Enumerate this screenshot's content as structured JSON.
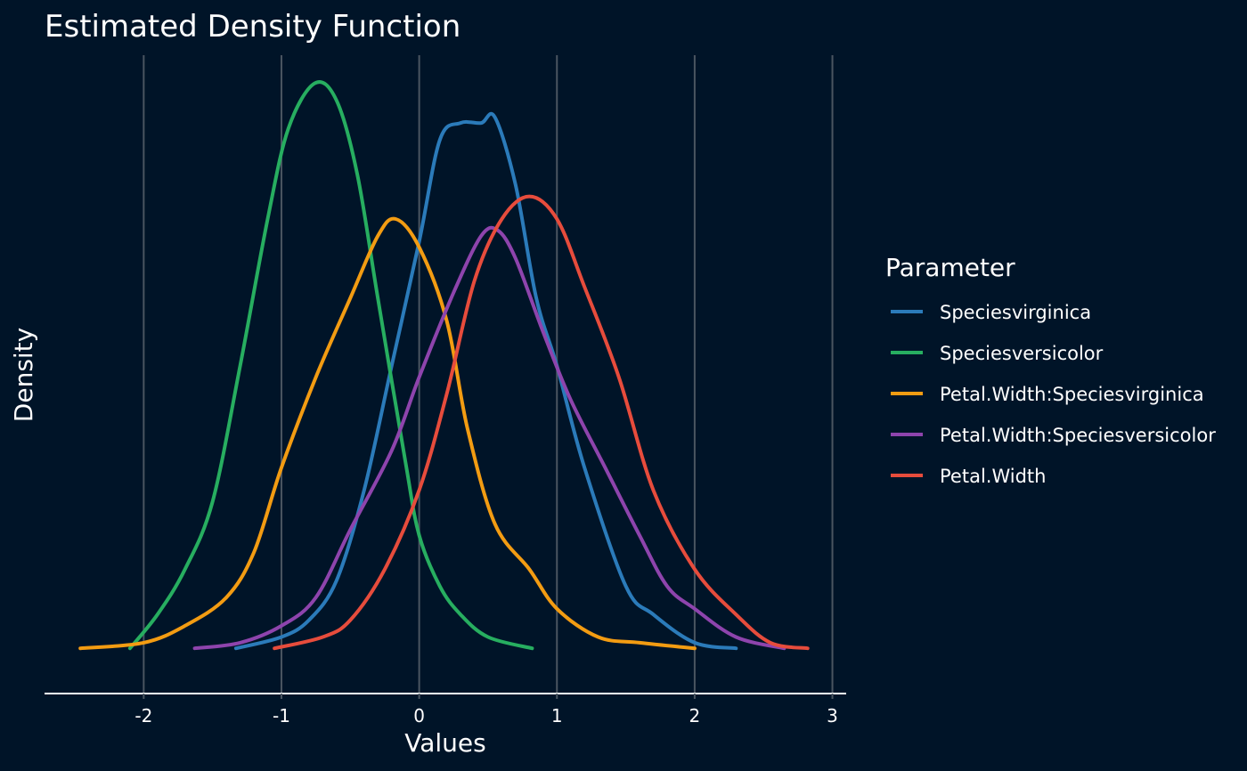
{
  "chart_data": {
    "type": "line",
    "title": "Estimated Density Function",
    "xlabel": "Values",
    "ylabel": "Density",
    "xlim": [
      -2.72,
      3.1
    ],
    "ylim": [
      -0.08,
      1.05
    ],
    "x_ticks": [
      -2,
      -1,
      0,
      1,
      2,
      3
    ],
    "x_tick_labels": [
      "-2",
      "-1",
      "0",
      "1",
      "2",
      "3"
    ],
    "grid": "vertical-major",
    "y_ticks_shown": false,
    "legend": {
      "title": "Parameter",
      "position": "right"
    },
    "series": [
      {
        "name": "Speciesvirginica",
        "color": "#2b7bba",
        "x": [
          -1.33,
          -1.0,
          -0.8,
          -0.6,
          -0.4,
          -0.2,
          0.0,
          0.15,
          0.3,
          0.45,
          0.55,
          0.7,
          0.85,
          1.0,
          1.2,
          1.5,
          1.7,
          2.0,
          2.3
        ],
        "y": [
          0.0,
          0.02,
          0.05,
          0.12,
          0.28,
          0.5,
          0.72,
          0.9,
          0.93,
          0.93,
          0.94,
          0.82,
          0.62,
          0.5,
          0.32,
          0.11,
          0.06,
          0.01,
          0.0
        ]
      },
      {
        "name": "Speciesversicolor",
        "color": "#27ae60",
        "x": [
          -2.1,
          -1.9,
          -1.7,
          -1.5,
          -1.3,
          -1.1,
          -0.95,
          -0.76,
          -0.6,
          -0.45,
          -0.3,
          -0.1,
          0.0,
          0.15,
          0.3,
          0.5,
          0.82
        ],
        "y": [
          0.0,
          0.06,
          0.14,
          0.26,
          0.5,
          0.76,
          0.92,
          1.0,
          0.97,
          0.84,
          0.62,
          0.33,
          0.2,
          0.11,
          0.06,
          0.02,
          0.0
        ]
      },
      {
        "name": "Petal.Width:Speciesvirginica",
        "color": "#f39c12",
        "x": [
          -2.46,
          -2.0,
          -1.7,
          -1.4,
          -1.2,
          -1.0,
          -0.75,
          -0.5,
          -0.3,
          -0.17,
          0.0,
          0.2,
          0.35,
          0.55,
          0.8,
          1.0,
          1.3,
          1.6,
          2.0
        ],
        "y": [
          0.0,
          0.01,
          0.04,
          0.09,
          0.17,
          0.32,
          0.48,
          0.62,
          0.73,
          0.76,
          0.71,
          0.58,
          0.39,
          0.22,
          0.14,
          0.07,
          0.02,
          0.01,
          0.0
        ]
      },
      {
        "name": "Petal.Width:Speciesversicolor",
        "color": "#8e44ad",
        "x": [
          -1.63,
          -1.3,
          -1.0,
          -0.75,
          -0.5,
          -0.2,
          0.0,
          0.25,
          0.45,
          0.57,
          0.7,
          0.9,
          1.1,
          1.35,
          1.6,
          1.8,
          2.0,
          2.3,
          2.65
        ],
        "y": [
          0.0,
          0.01,
          0.04,
          0.09,
          0.21,
          0.35,
          0.48,
          0.63,
          0.73,
          0.74,
          0.69,
          0.56,
          0.44,
          0.32,
          0.2,
          0.11,
          0.07,
          0.02,
          0.0
        ]
      },
      {
        "name": "Petal.Width",
        "color": "#e74c3c",
        "x": [
          -1.05,
          -0.7,
          -0.5,
          -0.25,
          0.0,
          0.2,
          0.4,
          0.6,
          0.8,
          1.0,
          1.2,
          1.45,
          1.7,
          2.0,
          2.3,
          2.55,
          2.82
        ],
        "y": [
          0.0,
          0.02,
          0.05,
          0.14,
          0.28,
          0.45,
          0.65,
          0.76,
          0.8,
          0.76,
          0.64,
          0.48,
          0.28,
          0.14,
          0.06,
          0.01,
          0.0
        ]
      }
    ]
  }
}
